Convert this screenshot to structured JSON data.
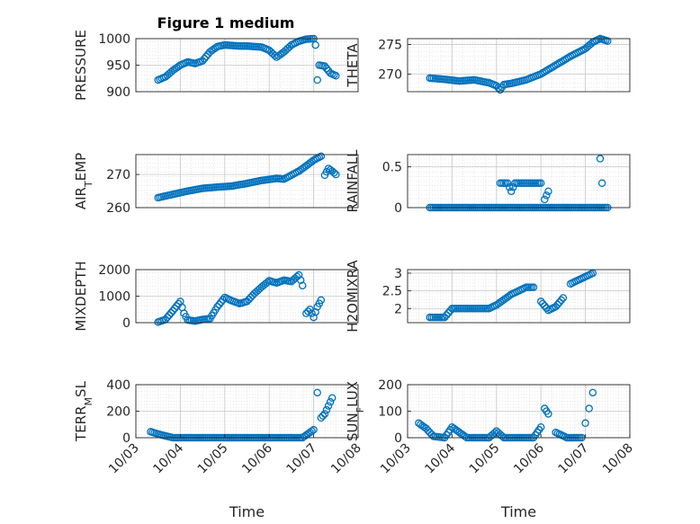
{
  "figure_title": "Figure 1 medium",
  "chart_data": [
    {
      "type": "scatter",
      "ylabel": "PRESSURE",
      "ylim": [
        900,
        1000
      ],
      "yticks": [
        "900",
        "950",
        "1000"
      ],
      "ytick_values": [
        900,
        950,
        1000
      ],
      "xlim": [
        "10/03",
        "10/07 18:00"
      ],
      "xticks": [],
      "xlabel": "",
      "grid": true,
      "points": [
        [
          "10/03 12:00",
          922
        ],
        [
          "10/03 16:00",
          928
        ],
        [
          "10/03 20:00",
          940
        ],
        [
          "10/04 00:00",
          950
        ],
        [
          "10/04 04:00",
          956
        ],
        [
          "10/04 08:00",
          953
        ],
        [
          "10/04 12:00",
          958
        ],
        [
          "10/04 16:00",
          975
        ],
        [
          "10/04 20:00",
          985
        ],
        [
          "10/05 00:00",
          988
        ],
        [
          "10/05 04:00",
          987
        ],
        [
          "10/05 08:00",
          986
        ],
        [
          "10/05 12:00",
          986
        ],
        [
          "10/05 16:00",
          985
        ],
        [
          "10/05 20:00",
          984
        ],
        [
          "10/06 00:00",
          978
        ],
        [
          "10/06 04:00",
          965
        ],
        [
          "10/06 08:00",
          975
        ],
        [
          "10/06 12:00",
          988
        ],
        [
          "10/06 16:00",
          995
        ],
        [
          "10/06 20:00",
          999
        ],
        [
          "10/07 00:00",
          1000
        ],
        [
          "10/07 01:00",
          988
        ],
        [
          "10/07 02:00",
          922
        ],
        [
          "10/07 03:00",
          950
        ],
        [
          "10/07 06:00",
          948
        ],
        [
          "10/07 09:00",
          935
        ],
        [
          "10/07 12:00",
          930
        ]
      ]
    },
    {
      "type": "scatter",
      "ylabel": "THETA",
      "ylim": [
        267,
        276
      ],
      "yticks": [
        "270",
        "275"
      ],
      "ytick_values": [
        270,
        275
      ],
      "xlim": [
        "10/03",
        "10/07 18:00"
      ],
      "xticks": [],
      "xlabel": "",
      "grid": true,
      "points": [
        [
          "10/03 12:00",
          269.3
        ],
        [
          "10/03 20:00",
          269.1
        ],
        [
          "10/04 04:00",
          268.8
        ],
        [
          "10/04 12:00",
          269.0
        ],
        [
          "10/04 20:00",
          268.5
        ],
        [
          "10/05 00:00",
          268.0
        ],
        [
          "10/05 02:00",
          267.3
        ],
        [
          "10/05 04:00",
          268.2
        ],
        [
          "10/05 08:00",
          268.4
        ],
        [
          "10/05 16:00",
          269.0
        ],
        [
          "10/06 00:00",
          270.0
        ],
        [
          "10/06 08:00",
          271.5
        ],
        [
          "10/06 16:00",
          273.0
        ],
        [
          "10/07 00:00",
          274.3
        ],
        [
          "10/07 04:00",
          275.4
        ],
        [
          "10/07 08:00",
          276.0
        ],
        [
          "10/07 12:00",
          275.6
        ]
      ]
    },
    {
      "type": "scatter",
      "ylabel": "AIR_TEMP",
      "ylabel_main": "AIR",
      "ylabel_sub": "T",
      "ylabel_rest": "EMP",
      "ylim": [
        260,
        276
      ],
      "yticks": [
        "260",
        "270"
      ],
      "ytick_values": [
        260,
        270
      ],
      "xlim": [
        "10/03",
        "10/07 18:00"
      ],
      "xticks": [],
      "xlabel": "",
      "grid": true,
      "points": [
        [
          "10/03 12:00",
          263.0
        ],
        [
          "10/03 20:00",
          264.0
        ],
        [
          "10/04 04:00",
          265.0
        ],
        [
          "10/04 12:00",
          265.8
        ],
        [
          "10/04 20:00",
          266.2
        ],
        [
          "10/05 04:00",
          266.5
        ],
        [
          "10/05 12:00",
          267.3
        ],
        [
          "10/05 20:00",
          268.2
        ],
        [
          "10/06 04:00",
          268.8
        ],
        [
          "10/06 08:00",
          268.6
        ],
        [
          "10/06 16:00",
          271.0
        ],
        [
          "10/06 20:00",
          272.6
        ],
        [
          "10/07 00:00",
          274.3
        ],
        [
          "10/07 04:00",
          275.5
        ],
        [
          "10/07 06:00",
          269.8
        ],
        [
          "10/07 08:00",
          271.8
        ],
        [
          "10/07 10:00",
          271.0
        ],
        [
          "10/07 12:00",
          270.0
        ]
      ]
    },
    {
      "type": "scatter",
      "ylabel": "RAINFALL",
      "ylim": [
        0,
        0.65
      ],
      "yticks": [
        "0",
        "0.5"
      ],
      "ytick_values": [
        0,
        0.5
      ],
      "xlim": [
        "10/03",
        "10/07 18:00"
      ],
      "xticks": [],
      "xlabel": "",
      "grid": true,
      "points": [
        [
          "10/03 12:00",
          0
        ],
        [
          "10/04 00:00",
          0
        ],
        [
          "10/04 12:00",
          0
        ],
        [
          "10/05 00:00",
          0
        ],
        [
          "10/05 12:00",
          0
        ],
        [
          "10/06 00:00",
          0
        ],
        [
          "10/06 12:00",
          0
        ],
        [
          "10/07 00:00",
          0
        ],
        [
          "10/07 12:00",
          0
        ],
        [
          "10/05 02:00",
          0.3
        ],
        [
          "10/05 06:00",
          0.3
        ],
        [
          "10/05 08:00",
          0.2
        ],
        [
          "10/05 10:00",
          0.3
        ],
        [
          "10/05 14:00",
          0.3
        ],
        [
          "10/05 18:00",
          0.3
        ],
        [
          "10/06 00:00",
          0.3
        ],
        [
          "10/06 02:00",
          0.1
        ],
        [
          "10/06 04:00",
          0.2
        ],
        [
          "10/07 08:00",
          0.6
        ],
        [
          "10/07 09:00",
          0.3
        ]
      ]
    },
    {
      "type": "scatter",
      "ylabel": "MIXDEPTH",
      "ylim": [
        0,
        2000
      ],
      "yticks": [
        "0",
        "1000",
        "2000"
      ],
      "ytick_values": [
        0,
        1000,
        2000
      ],
      "xlim": [
        "10/03",
        "10/07 18:00"
      ],
      "xticks": [],
      "xlabel": "",
      "grid": true,
      "points": [
        [
          "10/03 12:00",
          20
        ],
        [
          "10/03 16:00",
          120
        ],
        [
          "10/03 20:00",
          450
        ],
        [
          "10/04 00:00",
          800
        ],
        [
          "10/04 02:00",
          350
        ],
        [
          "10/04 04:00",
          100
        ],
        [
          "10/04 08:00",
          60
        ],
        [
          "10/04 12:00",
          120
        ],
        [
          "10/04 16:00",
          150
        ],
        [
          "10/04 20:00",
          600
        ],
        [
          "10/05 00:00",
          950
        ],
        [
          "10/05 04:00",
          820
        ],
        [
          "10/05 08:00",
          720
        ],
        [
          "10/05 12:00",
          800
        ],
        [
          "10/05 16:00",
          1100
        ],
        [
          "10/05 20:00",
          1350
        ],
        [
          "10/06 00:00",
          1580
        ],
        [
          "10/06 04:00",
          1500
        ],
        [
          "10/06 08:00",
          1600
        ],
        [
          "10/06 12:00",
          1550
        ],
        [
          "10/06 16:00",
          1800
        ],
        [
          "10/06 18:00",
          1400
        ],
        [
          "10/06 20:00",
          350
        ],
        [
          "10/06 22:00",
          500
        ],
        [
          "10/07 00:00",
          200
        ],
        [
          "10/07 02:00",
          600
        ],
        [
          "10/07 04:00",
          850
        ]
      ]
    },
    {
      "type": "scatter",
      "ylabel": "H2OMIXRA",
      "ylim": [
        1.6,
        3.1
      ],
      "yticks": [
        "2",
        "2.5",
        "3"
      ],
      "ytick_values": [
        2,
        2.5,
        3
      ],
      "xlim": [
        "10/03",
        "10/07 18:00"
      ],
      "xticks": [],
      "xlabel": "",
      "grid": true,
      "points": [
        [
          "10/03 12:00",
          1.75
        ],
        [
          "10/03 20:00",
          1.75
        ],
        [
          "10/04 00:00",
          2.0
        ],
        [
          "10/04 12:00",
          2.0
        ],
        [
          "10/04 20:00",
          2.0
        ],
        [
          "10/05 00:00",
          2.1
        ],
        [
          "10/05 08:00",
          2.4
        ],
        [
          "10/05 16:00",
          2.6
        ],
        [
          "10/05 20:00",
          2.6
        ],
        [
          "10/06 00:00",
          2.2
        ],
        [
          "10/06 04:00",
          1.95
        ],
        [
          "10/06 08:00",
          2.05
        ],
        [
          "10/06 12:00",
          2.3
        ],
        [
          "10/06 16:00",
          2.7
        ],
        [
          "10/06 20:00",
          2.8
        ],
        [
          "10/07 00:00",
          2.9
        ],
        [
          "10/07 04:00",
          3.0
        ]
      ]
    },
    {
      "type": "scatter",
      "ylabel": "TERR_MSL",
      "ylabel_main": "TERR",
      "ylabel_sub": "M",
      "ylabel_rest": "SL",
      "ylim": [
        0,
        400
      ],
      "yticks": [
        "0",
        "200",
        "400"
      ],
      "ytick_values": [
        0,
        200,
        400
      ],
      "xlim": [
        "10/03",
        "10/08"
      ],
      "xticks": [
        "10/03",
        "10/04",
        "10/05",
        "10/06",
        "10/07",
        "10/08"
      ],
      "xtick_values": [
        "10/03",
        "10/04",
        "10/05",
        "10/06",
        "10/07",
        "10/08"
      ],
      "xlabel": "Time",
      "grid": true,
      "points": [
        [
          "10/03 08:00",
          45
        ],
        [
          "10/03 14:00",
          20
        ],
        [
          "10/03 20:00",
          0
        ],
        [
          "10/04 06:00",
          0
        ],
        [
          "10/04 18:00",
          0
        ],
        [
          "10/05 06:00",
          0
        ],
        [
          "10/05 18:00",
          0
        ],
        [
          "10/06 06:00",
          0
        ],
        [
          "10/06 18:00",
          0
        ],
        [
          "10/07 00:00",
          60
        ],
        [
          "10/07 02:00",
          340
        ],
        [
          "10/07 04:00",
          150
        ],
        [
          "10/07 06:00",
          180
        ],
        [
          "10/07 08:00",
          240
        ],
        [
          "10/07 10:00",
          300
        ]
      ]
    },
    {
      "type": "scatter",
      "ylabel": "SUN_FLUX",
      "ylabel_main": "SUN",
      "ylabel_sub": "F",
      "ylabel_rest": "LUX",
      "ylim": [
        0,
        200
      ],
      "yticks": [
        "0",
        "100",
        "200"
      ],
      "ytick_values": [
        0,
        100,
        200
      ],
      "xlim": [
        "10/03",
        "10/08"
      ],
      "xticks": [
        "10/03",
        "10/04",
        "10/05",
        "10/06",
        "10/07",
        "10/08"
      ],
      "xtick_values": [
        "10/03",
        "10/04",
        "10/05",
        "10/06",
        "10/07",
        "10/08"
      ],
      "xlabel": "Time",
      "grid": true,
      "points": [
        [
          "10/03 06:00",
          55
        ],
        [
          "10/03 10:00",
          35
        ],
        [
          "10/03 14:00",
          5
        ],
        [
          "10/03 20:00",
          0
        ],
        [
          "10/04 00:00",
          40
        ],
        [
          "10/04 04:00",
          20
        ],
        [
          "10/04 08:00",
          0
        ],
        [
          "10/04 20:00",
          0
        ],
        [
          "10/05 00:00",
          25
        ],
        [
          "10/05 04:00",
          0
        ],
        [
          "10/05 12:00",
          0
        ],
        [
          "10/05 20:00",
          0
        ],
        [
          "10/06 00:00",
          40
        ],
        [
          "10/06 02:00",
          110
        ],
        [
          "10/06 04:00",
          90
        ],
        [
          "10/06 08:00",
          20
        ],
        [
          "10/06 14:00",
          0
        ],
        [
          "10/06 22:00",
          0
        ],
        [
          "10/07 00:00",
          55
        ],
        [
          "10/07 02:00",
          110
        ],
        [
          "10/07 04:00",
          170
        ]
      ]
    }
  ]
}
